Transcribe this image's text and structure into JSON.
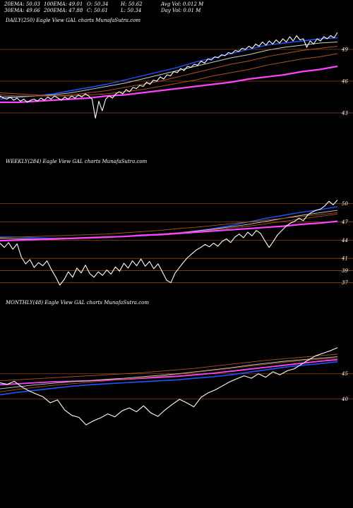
{
  "header": {
    "ema20": "20EMA: 50.03",
    "ema100": "100EMA: 49.01",
    "open": "O: 50.34",
    "high": "H: 50.62",
    "avgvol": "Avg Vol: 0.012  M",
    "ema30": "30EMA: 49.66",
    "ema200": "200EMA: 47.88",
    "close": "C: 50.61",
    "low": "L: 50.34",
    "dayvol": "Day Vol: 0.01 M"
  },
  "colors": {
    "price": "#ffffff",
    "ema_fast": "#2255ff",
    "ema_slow": "#ff44ff",
    "ema_mid": "#cccccc",
    "ema_brown": "#aa5522",
    "grid": "#8b4513"
  },
  "chart_data": [
    {
      "type": "line",
      "label": "DAILY(250) Eagle  View  GAL  charts MunafaSutra.com",
      "ylim": [
        42,
        51
      ],
      "ticks": [
        {
          "value": 49,
          "label": "49"
        },
        {
          "value": 46,
          "label": "46"
        },
        {
          "value": 43,
          "label": "43"
        }
      ],
      "price": [
        44.6,
        44.4,
        44.3,
        44.5,
        44.2,
        44.4,
        44.1,
        44.3,
        44.0,
        44.2,
        44.3,
        44.1,
        44.4,
        44.2,
        44.5,
        44.3,
        44.6,
        44.4,
        44.2,
        44.5,
        44.3,
        44.6,
        44.4,
        44.7,
        44.5,
        44.8,
        44.6,
        44.3,
        42.5,
        44.1,
        43.2,
        44.3,
        44.6,
        44.4,
        44.8,
        45.0,
        44.8,
        45.2,
        45.0,
        45.4,
        45.3,
        45.6,
        45.5,
        45.9,
        45.7,
        46.1,
        46.0,
        46.4,
        46.2,
        46.6,
        46.5,
        46.9,
        46.8,
        47.2,
        47.0,
        47.4,
        47.3,
        47.6,
        47.5,
        47.9,
        47.7,
        48.1,
        48.0,
        48.3,
        48.2,
        48.5,
        48.4,
        48.7,
        48.6,
        48.9,
        48.8,
        49.1,
        49.0,
        49.3,
        49.1,
        49.5,
        49.3,
        49.7,
        49.4,
        49.8,
        49.5,
        49.9,
        49.6,
        50.0,
        49.7,
        50.2,
        49.8,
        50.3,
        49.9,
        50.0,
        49.2,
        49.8,
        49.5,
        50.0,
        49.8,
        50.2,
        50.0,
        50.3,
        50.1,
        50.6
      ],
      "series": [
        {
          "values": [
            44.3,
            44.5,
            44.6,
            44.8,
            45.1,
            45.4,
            45.7,
            46.1,
            46.5,
            46.9,
            47.3,
            47.8,
            48.2,
            48.6,
            49.0,
            49.4,
            49.6,
            49.8,
            50.0,
            50.1
          ],
          "color": "#2255ff",
          "width": 1.4
        },
        {
          "values": [
            44.5,
            44.5,
            44.6,
            44.7,
            44.9,
            45.2,
            45.5,
            45.8,
            46.2,
            46.6,
            47.0,
            47.4,
            47.8,
            48.2,
            48.5,
            48.9,
            49.2,
            49.4,
            49.6,
            49.7
          ],
          "color": "#cccccc",
          "width": 0.9
        },
        {
          "values": [
            44.7,
            44.6,
            44.6,
            44.6,
            44.7,
            44.9,
            45.1,
            45.4,
            45.7,
            46.0,
            46.4,
            46.8,
            47.2,
            47.6,
            47.9,
            48.3,
            48.6,
            48.9,
            49.1,
            49.3
          ],
          "color": "#aa5522",
          "width": 0.9
        },
        {
          "values": [
            44.9,
            44.8,
            44.7,
            44.6,
            44.6,
            44.7,
            44.8,
            45.0,
            45.2,
            45.5,
            45.8,
            46.1,
            46.5,
            46.8,
            47.1,
            47.5,
            47.8,
            48.1,
            48.3,
            48.6
          ],
          "color": "#aa5522",
          "width": 0.9
        },
        {
          "values": [
            44.0,
            44.0,
            44.1,
            44.2,
            44.3,
            44.4,
            44.6,
            44.7,
            44.9,
            45.1,
            45.3,
            45.5,
            45.7,
            45.9,
            46.2,
            46.4,
            46.6,
            46.9,
            47.1,
            47.4
          ],
          "color": "#ff44ff",
          "width": 2.2
        }
      ]
    },
    {
      "type": "line",
      "label": "WEEKLY(284) Eagle  View  GAL  charts MunafaSutra.com",
      "ylim": [
        36.5,
        51
      ],
      "ticks": [
        {
          "value": 50,
          "label": "50"
        },
        {
          "value": 47,
          "label": "47"
        },
        {
          "value": 44,
          "label": "44"
        },
        {
          "value": 41,
          "label": "41"
        },
        {
          "value": 39,
          "label": "39"
        },
        {
          "value": 37,
          "label": "37"
        }
      ],
      "price": [
        43.5,
        42.8,
        43.6,
        42.5,
        43.4,
        41.2,
        40.1,
        40.8,
        39.5,
        40.3,
        39.8,
        40.6,
        39.2,
        38.0,
        36.6,
        37.5,
        38.8,
        37.9,
        39.4,
        38.6,
        39.9,
        38.5,
        37.9,
        38.8,
        38.2,
        39.1,
        38.4,
        39.6,
        38.9,
        40.2,
        39.4,
        40.6,
        39.8,
        40.9,
        39.7,
        40.5,
        39.3,
        40.1,
        38.8,
        37.4,
        37.0,
        38.6,
        39.5,
        40.4,
        41.2,
        41.8,
        42.4,
        42.8,
        43.3,
        42.9,
        43.5,
        43.0,
        43.8,
        44.2,
        43.6,
        44.5,
        45.0,
        44.4,
        45.3,
        44.7,
        45.6,
        45.1,
        43.9,
        42.8,
        43.8,
        44.9,
        45.6,
        46.3,
        46.8,
        47.1,
        47.6,
        47.2,
        48.1,
        48.6,
        48.9,
        49.1,
        49.6,
        50.4,
        49.8,
        50.6
      ],
      "series": [
        {
          "values": [
            44.5,
            44.5,
            44.4,
            44.3,
            44.3,
            44.4,
            44.5,
            44.6,
            44.7,
            44.9,
            45.1,
            45.5,
            45.9,
            46.4,
            47.0,
            47.6,
            48.1,
            48.6,
            49.0,
            49.5
          ],
          "color": "#2255ff",
          "width": 1.4
        },
        {
          "values": [
            44.3,
            44.2,
            44.2,
            44.2,
            44.3,
            44.4,
            44.5,
            44.6,
            44.8,
            45.0,
            45.2,
            45.5,
            45.8,
            46.2,
            46.6,
            47.1,
            47.6,
            48.1,
            48.5,
            48.9
          ],
          "color": "#cccccc",
          "width": 0.9
        },
        {
          "values": [
            43.9,
            43.9,
            44.0,
            44.1,
            44.2,
            44.3,
            44.4,
            44.6,
            44.8,
            45.0,
            45.2,
            45.4,
            45.7,
            46.0,
            46.3,
            46.7,
            47.1,
            47.5,
            47.9,
            48.3
          ],
          "color": "#aa5522",
          "width": 0.9
        },
        {
          "values": [
            44.4,
            44.5,
            44.6,
            44.7,
            44.8,
            44.9,
            45.0,
            45.2,
            45.4,
            45.6,
            45.9,
            46.1,
            46.4,
            46.7,
            47.0,
            47.3,
            47.6,
            47.9,
            48.2,
            48.5
          ],
          "color": "#aa5522",
          "width": 0.9
        },
        {
          "values": [
            43.9,
            44.0,
            44.1,
            44.2,
            44.3,
            44.4,
            44.5,
            44.6,
            44.8,
            44.9,
            45.1,
            45.3,
            45.5,
            45.7,
            45.9,
            46.1,
            46.3,
            46.6,
            46.8,
            47.1
          ],
          "color": "#ff44ff",
          "width": 2.2
        }
      ]
    },
    {
      "type": "line",
      "label": "MONTHLY(48) Eagle  View  GAL  charts MunafaSutra.com",
      "ylim": [
        33,
        52
      ],
      "ticks": [
        {
          "value": 45,
          "label": "45"
        },
        {
          "value": 40,
          "label": "40"
        }
      ],
      "price": [
        43.2,
        42.9,
        43.5,
        42.4,
        41.6,
        41.0,
        40.4,
        39.2,
        39.8,
        37.8,
        36.7,
        36.3,
        34.8,
        35.6,
        36.2,
        37.0,
        36.4,
        37.6,
        38.2,
        37.4,
        38.6,
        37.2,
        36.5,
        37.8,
        38.9,
        39.9,
        39.2,
        38.4,
        40.3,
        41.2,
        41.8,
        42.6,
        43.4,
        44.0,
        44.6,
        44.1,
        45.0,
        44.3,
        45.4,
        44.8,
        45.6,
        46.0,
        46.9,
        47.8,
        48.6,
        49.1,
        49.6,
        50.2
      ],
      "series": [
        {
          "values": [
            40.8,
            41.3,
            41.7,
            42.1,
            42.5,
            42.8,
            43.0,
            43.2,
            43.4,
            43.6,
            43.8,
            44.1,
            44.4,
            44.8,
            45.3,
            45.8,
            46.3,
            46.7,
            47.0,
            47.4
          ],
          "color": "#2255ff",
          "width": 1.6
        },
        {
          "values": [
            42.8,
            43.0,
            43.2,
            43.4,
            43.5,
            43.6,
            43.8,
            43.9,
            44.1,
            44.3,
            44.5,
            44.8,
            45.1,
            45.5,
            45.9,
            46.3,
            46.7,
            47.1,
            47.5,
            47.8
          ],
          "color": "#ff44ff",
          "width": 1.8
        },
        {
          "values": [
            42.0,
            42.4,
            42.8,
            43.1,
            43.4,
            43.6,
            43.9,
            44.1,
            44.4,
            44.7,
            45.0,
            45.4,
            45.8,
            46.2,
            46.7,
            47.1,
            47.5,
            47.8,
            48.1,
            48.4
          ],
          "color": "#cccccc",
          "width": 0.9
        },
        {
          "values": [
            43.6,
            43.8,
            44.0,
            44.2,
            44.4,
            44.6,
            44.8,
            45.0,
            45.2,
            45.5,
            45.8,
            46.1,
            46.5,
            46.9,
            47.3,
            47.7,
            48.0,
            48.3,
            48.6,
            48.9
          ],
          "color": "#aa5522",
          "width": 0.9
        },
        {
          "values": [
            41.4,
            41.9,
            42.3,
            42.7,
            43.0,
            43.3,
            43.6,
            43.9,
            44.2,
            44.5,
            44.9,
            45.3,
            45.7,
            46.1,
            46.5,
            46.9,
            47.3,
            47.6,
            47.9,
            48.1
          ],
          "color": "#aa5522",
          "width": 0.9
        }
      ]
    }
  ]
}
